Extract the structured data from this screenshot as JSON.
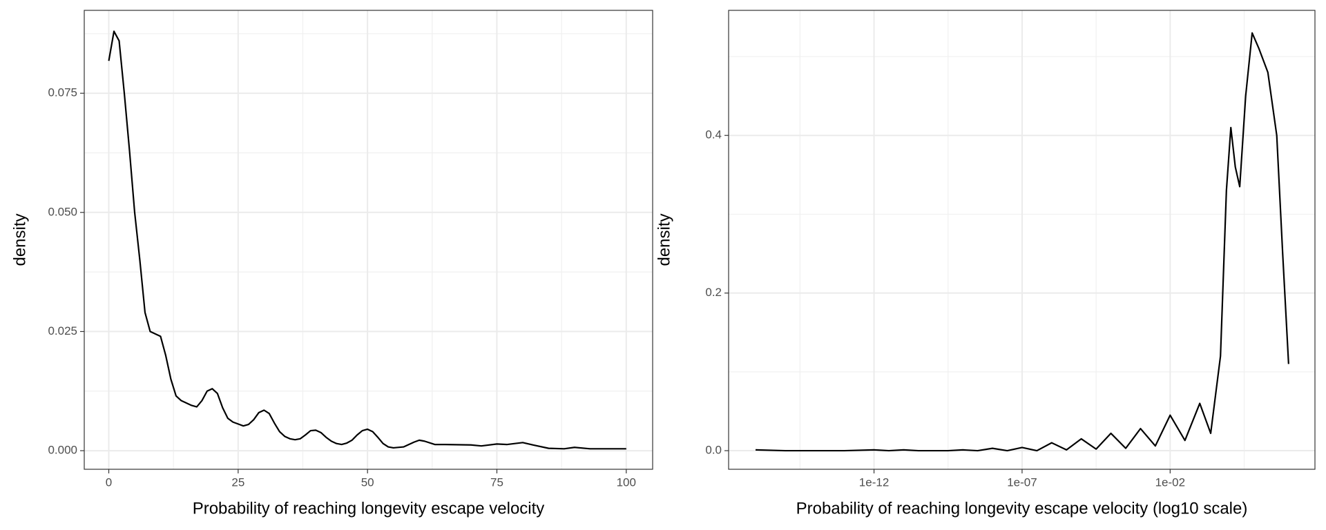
{
  "chart_data": [
    {
      "type": "line",
      "x_label": "Probability of reaching longevity escape velocity",
      "y_label": "density",
      "x": [
        0,
        1,
        2,
        3,
        4,
        5,
        6,
        7,
        8,
        9,
        10,
        11,
        12,
        13,
        14,
        15,
        16,
        17,
        18,
        19,
        20,
        21,
        22,
        23,
        24,
        25,
        26,
        27,
        28,
        29,
        30,
        31,
        32,
        33,
        34,
        35,
        36,
        37,
        38,
        39,
        40,
        41,
        42,
        43,
        44,
        45,
        46,
        47,
        48,
        49,
        50,
        51,
        52,
        53,
        54,
        55,
        57,
        59,
        60,
        61,
        63,
        65,
        70,
        72,
        75,
        77,
        80,
        82,
        85,
        88,
        90,
        93,
        100
      ],
      "series": [
        {
          "color": "#000000",
          "values": [
            0.0818,
            0.088,
            0.086,
            0.075,
            0.063,
            0.05,
            0.04,
            0.029,
            0.025,
            0.0245,
            0.024,
            0.02,
            0.015,
            0.0115,
            0.0105,
            0.01,
            0.0095,
            0.0092,
            0.0105,
            0.0125,
            0.013,
            0.012,
            0.009,
            0.0068,
            0.006,
            0.0056,
            0.0052,
            0.0055,
            0.0065,
            0.008,
            0.0085,
            0.0078,
            0.0058,
            0.004,
            0.003,
            0.0025,
            0.0023,
            0.0025,
            0.0033,
            0.0042,
            0.0043,
            0.0038,
            0.0028,
            0.002,
            0.0015,
            0.0013,
            0.0016,
            0.0022,
            0.0033,
            0.0042,
            0.0045,
            0.004,
            0.0028,
            0.0015,
            0.0008,
            0.0006,
            0.0008,
            0.0018,
            0.0022,
            0.002,
            0.0013,
            0.0013,
            0.0012,
            0.001,
            0.0014,
            0.0013,
            0.0017,
            0.0012,
            0.0005,
            0.0004,
            0.0007,
            0.0004,
            0.0004
          ]
        }
      ],
      "xlim": [
        -4.74,
        105.1
      ],
      "xticks": [
        0,
        25,
        50,
        75,
        100
      ],
      "ylim": [
        -0.0039,
        0.0924
      ],
      "yticks": [
        {
          "value": 0,
          "label": "0.000"
        },
        {
          "value": 0.025,
          "label": "0.025"
        },
        {
          "value": 0.05,
          "label": "0.050"
        },
        {
          "value": 0.075,
          "label": "0.075"
        }
      ],
      "grid": true,
      "log_x": false
    },
    {
      "type": "line",
      "x_label": "Probability of reaching longevity escape velocity (log10 scale)",
      "y_label": "density",
      "x": [
        1e-16,
        1e-15,
        1e-14,
        1e-13,
        1e-12,
        3.16e-12,
        1e-11,
        3.16e-11,
        1e-10,
        3.16e-10,
        1e-09,
        3.16e-09,
        1e-08,
        3.16e-08,
        1e-07,
        3.16e-07,
        1e-06,
        3.16e-06,
        1e-05,
        3.16e-05,
        0.0001,
        0.000316,
        0.001,
        0.00316,
        0.01,
        0.0316,
        0.1,
        0.234,
        0.501,
        0.794,
        1.122,
        1.585,
        2.239,
        3.548,
        5.888,
        10,
        19.95,
        39.81,
        63.1,
        100
      ],
      "series": [
        {
          "color": "#000000",
          "values": [
            0.001,
            0,
            0,
            0,
            0.001,
            0,
            0.001,
            0,
            0,
            0,
            0.001,
            0,
            0.003,
            0,
            0.004,
            0,
            0.01,
            0.001,
            0.015,
            0.002,
            0.022,
            0.003,
            0.028,
            0.006,
            0.045,
            0.013,
            0.06,
            0.022,
            0.12,
            0.33,
            0.41,
            0.36,
            0.335,
            0.45,
            0.53,
            0.51,
            0.48,
            0.4,
            0.25,
            0.11
          ]
        }
      ],
      "xlim": [
        1.23e-17,
        776
      ],
      "xticks": [
        {
          "value": 1e-12,
          "label": "1e-12"
        },
        {
          "value": 1e-07,
          "label": "1e-07"
        },
        {
          "value": 0.01,
          "label": "1e-02"
        }
      ],
      "ylim": [
        -0.0236,
        0.5587
      ],
      "yticks": [
        {
          "value": 0,
          "label": "0.0"
        },
        {
          "value": 0.2,
          "label": "0.2"
        },
        {
          "value": 0.4,
          "label": "0.4"
        }
      ],
      "grid": true,
      "log_x": true
    }
  ]
}
